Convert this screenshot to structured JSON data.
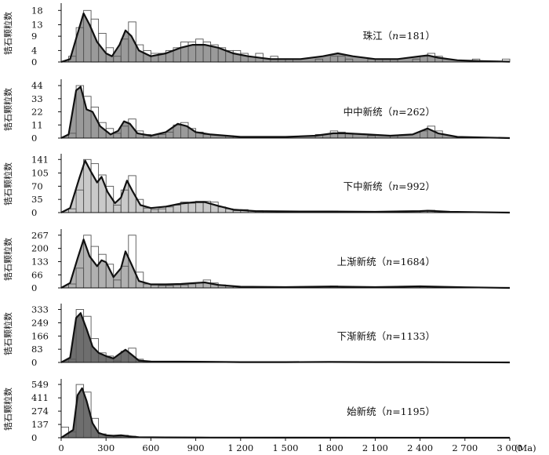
{
  "figure": {
    "x_axis_unit": "(Ma)"
  },
  "colors": {
    "curve": "#111111",
    "bar_outline": "#555555",
    "panel_fills": [
      "#9a9a9a",
      "#9a9a9a",
      "#c9c9c9",
      "#b0b0b0",
      "#6e6e6e",
      "#6e6e6e"
    ]
  },
  "chart_data": [
    {
      "type": "histogram+kde",
      "label": "珠江（n=181）",
      "ylabel": "锆石颗粒数",
      "yticks": [
        0,
        4,
        9,
        13,
        18
      ],
      "ylim": [
        0,
        20
      ],
      "x_tick_labels": [
        "0",
        "300",
        "600",
        "900",
        "1 200",
        "1 500",
        "1 800",
        "2 100",
        "2 400",
        "2 700",
        "3 000"
      ],
      "x_ticks": [
        0,
        300,
        600,
        900,
        1200,
        1500,
        1800,
        2100,
        2400,
        2700,
        3000
      ],
      "xlim": [
        0,
        3000
      ],
      "bin_width": 50,
      "bins": [
        [
          50,
          2
        ],
        [
          100,
          12
        ],
        [
          150,
          18
        ],
        [
          200,
          15
        ],
        [
          250,
          10
        ],
        [
          300,
          5
        ],
        [
          350,
          2
        ],
        [
          400,
          8
        ],
        [
          450,
          14
        ],
        [
          500,
          6
        ],
        [
          550,
          4
        ],
        [
          600,
          3
        ],
        [
          650,
          3
        ],
        [
          700,
          4
        ],
        [
          750,
          5
        ],
        [
          800,
          7
        ],
        [
          850,
          7
        ],
        [
          900,
          8
        ],
        [
          950,
          7
        ],
        [
          1000,
          6
        ],
        [
          1050,
          5
        ],
        [
          1100,
          4
        ],
        [
          1150,
          4
        ],
        [
          1200,
          3
        ],
        [
          1300,
          3
        ],
        [
          1400,
          2
        ],
        [
          1500,
          1
        ],
        [
          1700,
          1
        ],
        [
          1800,
          2
        ],
        [
          1850,
          2
        ],
        [
          1900,
          1
        ],
        [
          2050,
          1
        ],
        [
          2100,
          1
        ],
        [
          2200,
          1
        ],
        [
          2350,
          1
        ],
        [
          2400,
          2
        ],
        [
          2450,
          3
        ],
        [
          2500,
          2
        ],
        [
          2750,
          1
        ],
        [
          2950,
          1
        ]
      ],
      "kde": [
        [
          0,
          0
        ],
        [
          60,
          1
        ],
        [
          110,
          10
        ],
        [
          150,
          17
        ],
        [
          190,
          13
        ],
        [
          240,
          7
        ],
        [
          300,
          3
        ],
        [
          340,
          2
        ],
        [
          390,
          6
        ],
        [
          430,
          11
        ],
        [
          470,
          9
        ],
        [
          520,
          4
        ],
        [
          600,
          2
        ],
        [
          700,
          3
        ],
        [
          800,
          5
        ],
        [
          880,
          6
        ],
        [
          960,
          6
        ],
        [
          1050,
          5
        ],
        [
          1150,
          3
        ],
        [
          1250,
          2
        ],
        [
          1400,
          1
        ],
        [
          1600,
          1
        ],
        [
          1750,
          2
        ],
        [
          1850,
          3
        ],
        [
          1950,
          2
        ],
        [
          2100,
          1
        ],
        [
          2250,
          1
        ],
        [
          2400,
          2
        ],
        [
          2450,
          2.3
        ],
        [
          2520,
          1.5
        ],
        [
          2650,
          0.6
        ],
        [
          2800,
          0.3
        ],
        [
          3000,
          0.1
        ]
      ]
    },
    {
      "type": "histogram+kde",
      "label": "中中新统（n=262）",
      "ylabel": "锆石颗粒数",
      "yticks": [
        0,
        11,
        22,
        33,
        44
      ],
      "ylim": [
        0,
        48
      ],
      "x_tick_labels": [
        "0",
        "300",
        "600",
        "900",
        "1 200",
        "1 500",
        "1 800",
        "2 100",
        "2 400",
        "2 700",
        "3 000"
      ],
      "x_ticks": [
        0,
        300,
        600,
        900,
        1200,
        1500,
        1800,
        2100,
        2400,
        2700,
        3000
      ],
      "xlim": [
        0,
        3000
      ],
      "bin_width": 50,
      "bins": [
        [
          50,
          4
        ],
        [
          100,
          44
        ],
        [
          150,
          35
        ],
        [
          200,
          26
        ],
        [
          250,
          13
        ],
        [
          300,
          8
        ],
        [
          350,
          4
        ],
        [
          400,
          10
        ],
        [
          450,
          16
        ],
        [
          500,
          6
        ],
        [
          550,
          3
        ],
        [
          650,
          3
        ],
        [
          700,
          5
        ],
        [
          750,
          11
        ],
        [
          800,
          13
        ],
        [
          850,
          8
        ],
        [
          900,
          5
        ],
        [
          950,
          3
        ],
        [
          1100,
          2
        ],
        [
          1700,
          3
        ],
        [
          1800,
          6
        ],
        [
          1850,
          5
        ],
        [
          1900,
          4
        ],
        [
          2050,
          2
        ],
        [
          2200,
          2
        ],
        [
          2400,
          6
        ],
        [
          2450,
          10
        ],
        [
          2500,
          6
        ]
      ],
      "kde": [
        [
          0,
          0
        ],
        [
          50,
          3
        ],
        [
          100,
          40
        ],
        [
          130,
          43
        ],
        [
          170,
          24
        ],
        [
          210,
          22
        ],
        [
          260,
          10
        ],
        [
          330,
          3
        ],
        [
          380,
          6
        ],
        [
          420,
          14
        ],
        [
          460,
          12
        ],
        [
          510,
          4
        ],
        [
          600,
          2
        ],
        [
          700,
          5
        ],
        [
          780,
          12
        ],
        [
          840,
          10
        ],
        [
          900,
          5
        ],
        [
          1000,
          3
        ],
        [
          1200,
          1
        ],
        [
          1500,
          1
        ],
        [
          1700,
          2
        ],
        [
          1820,
          4
        ],
        [
          1900,
          4
        ],
        [
          2050,
          3
        ],
        [
          2200,
          2
        ],
        [
          2350,
          3
        ],
        [
          2450,
          8
        ],
        [
          2520,
          4
        ],
        [
          2650,
          1
        ],
        [
          3000,
          0
        ]
      ]
    },
    {
      "type": "histogram+kde",
      "label": "下中新统（n=992）",
      "ylabel": "锆石颗粒数",
      "yticks": [
        0,
        35,
        70,
        105,
        141
      ],
      "ylim": [
        0,
        152
      ],
      "x_tick_labels": [
        "0",
        "300",
        "600",
        "900",
        "1 200",
        "1 500",
        "1 800",
        "2 100",
        "2 400",
        "2 700",
        "3 000"
      ],
      "x_ticks": [
        0,
        300,
        600,
        900,
        1200,
        1500,
        1800,
        2100,
        2400,
        2700,
        3000
      ],
      "xlim": [
        0,
        3000
      ],
      "bin_width": 50,
      "bins": [
        [
          50,
          10
        ],
        [
          100,
          60
        ],
        [
          150,
          141
        ],
        [
          200,
          130
        ],
        [
          250,
          100
        ],
        [
          300,
          70
        ],
        [
          350,
          20
        ],
        [
          400,
          60
        ],
        [
          450,
          98
        ],
        [
          500,
          35
        ],
        [
          550,
          12
        ],
        [
          600,
          8
        ],
        [
          650,
          10
        ],
        [
          700,
          15
        ],
        [
          750,
          20
        ],
        [
          800,
          28
        ],
        [
          850,
          25
        ],
        [
          900,
          30
        ],
        [
          950,
          30
        ],
        [
          1000,
          28
        ],
        [
          1050,
          15
        ],
        [
          1100,
          10
        ],
        [
          1150,
          5
        ],
        [
          1200,
          8
        ],
        [
          1300,
          5
        ],
        [
          1500,
          4
        ],
        [
          1800,
          4
        ],
        [
          2100,
          3
        ],
        [
          2400,
          5
        ],
        [
          2450,
          6
        ]
      ],
      "kde": [
        [
          0,
          0
        ],
        [
          60,
          12
        ],
        [
          120,
          90
        ],
        [
          160,
          138
        ],
        [
          200,
          108
        ],
        [
          240,
          80
        ],
        [
          270,
          95
        ],
        [
          310,
          55
        ],
        [
          360,
          25
        ],
        [
          400,
          40
        ],
        [
          440,
          85
        ],
        [
          480,
          55
        ],
        [
          530,
          20
        ],
        [
          600,
          12
        ],
        [
          700,
          16
        ],
        [
          800,
          24
        ],
        [
          900,
          28
        ],
        [
          960,
          28
        ],
        [
          1050,
          18
        ],
        [
          1150,
          8
        ],
        [
          1300,
          4
        ],
        [
          1600,
          3
        ],
        [
          1800,
          3
        ],
        [
          2100,
          2
        ],
        [
          2400,
          4
        ],
        [
          2450,
          5
        ],
        [
          2600,
          2
        ],
        [
          3000,
          0
        ]
      ]
    },
    {
      "type": "histogram+kde",
      "label": "上渐新统（n=1684）",
      "ylabel": "锆石颗粒数",
      "yticks": [
        0,
        66,
        133,
        200,
        267
      ],
      "ylim": [
        0,
        290
      ],
      "x_tick_labels": [
        "0",
        "300",
        "600",
        "900",
        "1 200",
        "1 500",
        "1 800",
        "2 100",
        "2 400",
        "2 700",
        "3 000"
      ],
      "x_ticks": [
        0,
        300,
        600,
        900,
        1200,
        1500,
        1800,
        2100,
        2400,
        2700,
        3000
      ],
      "xlim": [
        0,
        3000
      ],
      "bin_width": 50,
      "bins": [
        [
          50,
          20
        ],
        [
          100,
          100
        ],
        [
          150,
          267
        ],
        [
          200,
          210
        ],
        [
          250,
          170
        ],
        [
          300,
          120
        ],
        [
          350,
          40
        ],
        [
          400,
          110
        ],
        [
          450,
          267
        ],
        [
          500,
          80
        ],
        [
          550,
          20
        ],
        [
          600,
          15
        ],
        [
          650,
          12
        ],
        [
          700,
          12
        ],
        [
          750,
          15
        ],
        [
          800,
          15
        ],
        [
          850,
          20
        ],
        [
          900,
          25
        ],
        [
          950,
          40
        ],
        [
          1000,
          25
        ],
        [
          1050,
          15
        ],
        [
          1100,
          10
        ],
        [
          1150,
          8
        ],
        [
          1200,
          5
        ],
        [
          1400,
          5
        ],
        [
          1800,
          10
        ],
        [
          2400,
          8
        ]
      ],
      "kde": [
        [
          0,
          0
        ],
        [
          60,
          25
        ],
        [
          110,
          150
        ],
        [
          150,
          245
        ],
        [
          190,
          160
        ],
        [
          240,
          110
        ],
        [
          270,
          140
        ],
        [
          300,
          130
        ],
        [
          350,
          55
        ],
        [
          400,
          100
        ],
        [
          430,
          185
        ],
        [
          470,
          120
        ],
        [
          520,
          35
        ],
        [
          600,
          18
        ],
        [
          700,
          18
        ],
        [
          800,
          20
        ],
        [
          900,
          25
        ],
        [
          960,
          28
        ],
        [
          1050,
          15
        ],
        [
          1200,
          6
        ],
        [
          1500,
          4
        ],
        [
          1800,
          7
        ],
        [
          2100,
          4
        ],
        [
          2400,
          8
        ],
        [
          2700,
          3
        ],
        [
          3000,
          0
        ]
      ]
    },
    {
      "type": "histogram+kde",
      "label": "下渐新统（n=1133）",
      "ylabel": "锆石颗粒数",
      "yticks": [
        0,
        83,
        166,
        249,
        333
      ],
      "ylim": [
        0,
        360
      ],
      "x_tick_labels": [
        "0",
        "300",
        "600",
        "900",
        "1 200",
        "1 500",
        "1 800",
        "2 100",
        "2 400",
        "2 700",
        "3 000"
      ],
      "x_ticks": [
        0,
        300,
        600,
        900,
        1200,
        1500,
        1800,
        2100,
        2400,
        2700,
        3000
      ],
      "xlim": [
        0,
        3000
      ],
      "bin_width": 50,
      "bins": [
        [
          50,
          20
        ],
        [
          100,
          333
        ],
        [
          150,
          290
        ],
        [
          200,
          150
        ],
        [
          250,
          60
        ],
        [
          300,
          40
        ],
        [
          350,
          10
        ],
        [
          400,
          70
        ],
        [
          450,
          90
        ],
        [
          500,
          20
        ],
        [
          550,
          5
        ],
        [
          600,
          5
        ],
        [
          700,
          5
        ],
        [
          900,
          5
        ],
        [
          1800,
          3
        ]
      ],
      "kde": [
        [
          0,
          0
        ],
        [
          60,
          30
        ],
        [
          100,
          280
        ],
        [
          130,
          310
        ],
        [
          170,
          210
        ],
        [
          210,
          100
        ],
        [
          250,
          60
        ],
        [
          300,
          40
        ],
        [
          350,
          25
        ],
        [
          400,
          60
        ],
        [
          430,
          80
        ],
        [
          470,
          50
        ],
        [
          520,
          12
        ],
        [
          600,
          6
        ],
        [
          800,
          5
        ],
        [
          1000,
          4
        ],
        [
          1200,
          2
        ],
        [
          1500,
          2
        ],
        [
          1800,
          3
        ],
        [
          2100,
          2
        ],
        [
          2400,
          2
        ],
        [
          2700,
          1
        ],
        [
          3000,
          0
        ]
      ]
    },
    {
      "type": "histogram+kde",
      "label": "始新统（n=1195）",
      "ylabel": "锆石颗粒数",
      "yticks": [
        0,
        137,
        274,
        411,
        549
      ],
      "ylim": [
        0,
        590
      ],
      "x_tick_labels": [
        "0",
        "300",
        "600",
        "900",
        "1 200",
        "1 500",
        "1 800",
        "2 100",
        "2 400",
        "2 700",
        "3 000"
      ],
      "x_ticks": [
        0,
        300,
        600,
        900,
        1200,
        1500,
        1800,
        2100,
        2400,
        2700,
        3000
      ],
      "xlim": [
        0,
        3000
      ],
      "bin_width": 50,
      "bins": [
        [
          0,
          110
        ],
        [
          50,
          60
        ],
        [
          100,
          549
        ],
        [
          150,
          470
        ],
        [
          200,
          200
        ],
        [
          250,
          40
        ],
        [
          300,
          20
        ],
        [
          350,
          10
        ],
        [
          400,
          25
        ],
        [
          450,
          15
        ],
        [
          500,
          5
        ],
        [
          600,
          3
        ]
      ],
      "kde": [
        [
          0,
          0
        ],
        [
          40,
          40
        ],
        [
          80,
          80
        ],
        [
          110,
          440
        ],
        [
          140,
          510
        ],
        [
          170,
          380
        ],
        [
          210,
          150
        ],
        [
          250,
          50
        ],
        [
          300,
          25
        ],
        [
          350,
          20
        ],
        [
          400,
          25
        ],
        [
          450,
          15
        ],
        [
          520,
          5
        ],
        [
          700,
          3
        ],
        [
          1000,
          2
        ],
        [
          1500,
          1
        ],
        [
          3000,
          0
        ]
      ]
    }
  ]
}
